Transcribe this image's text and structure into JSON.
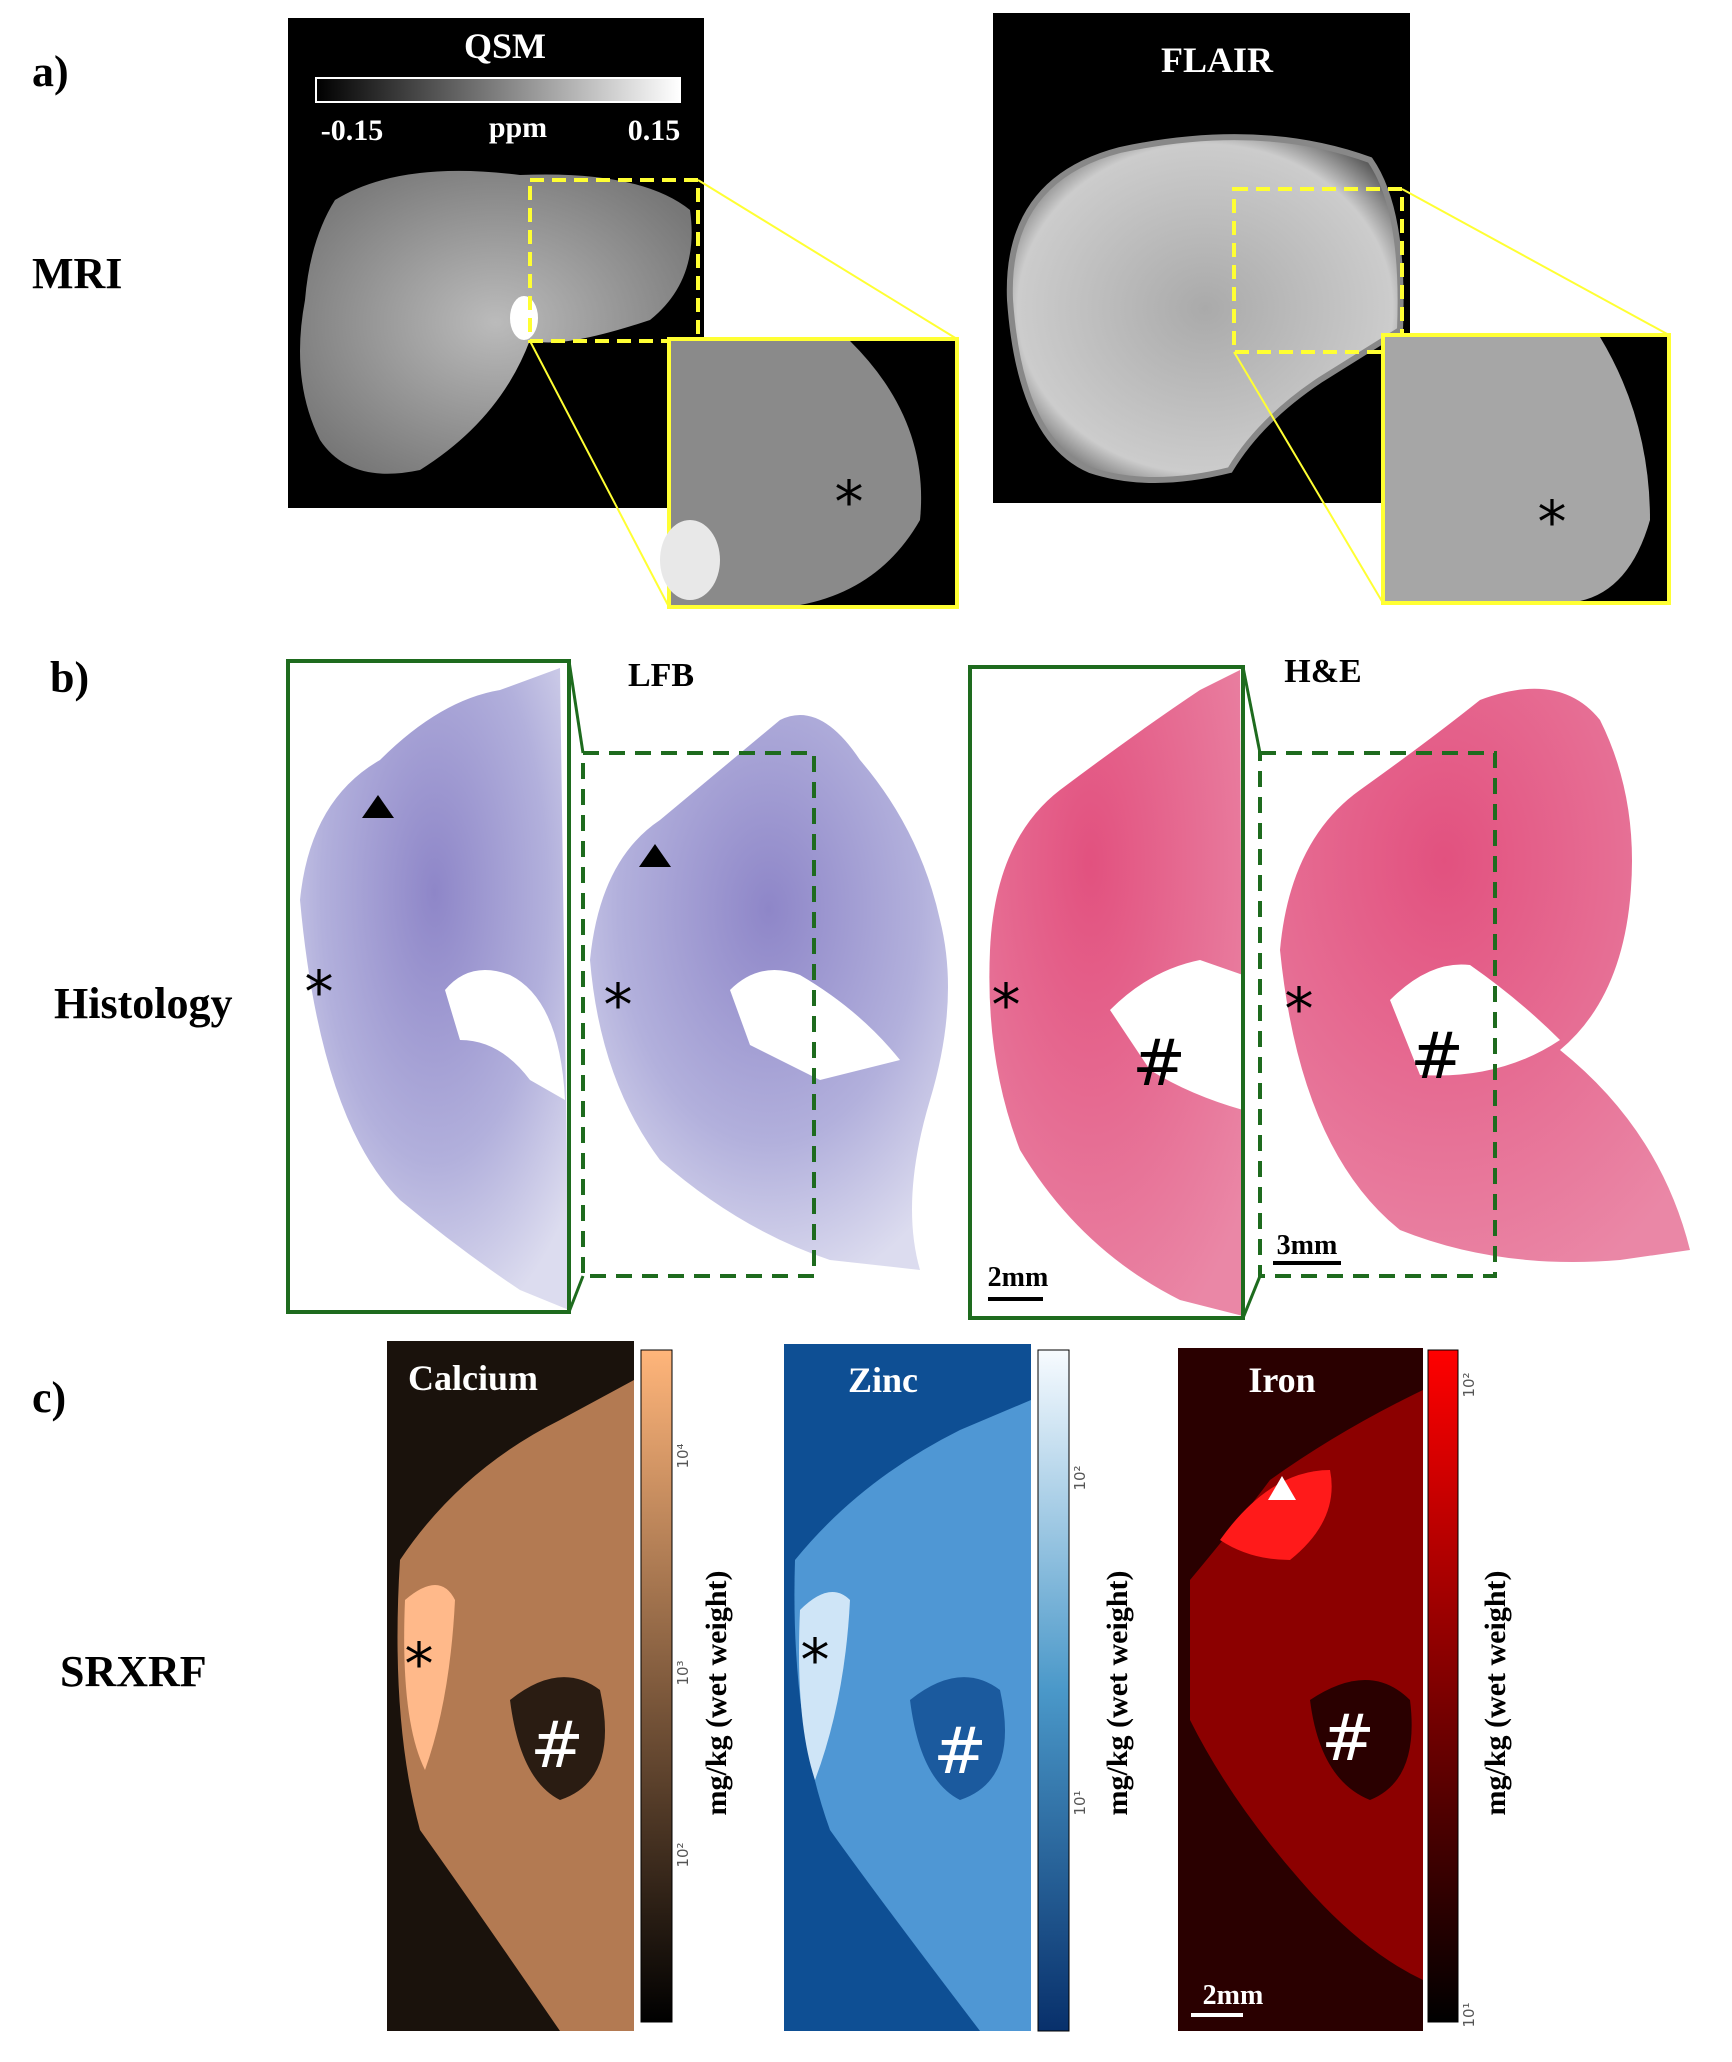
{
  "a": {
    "label": "a)",
    "row": "MRI",
    "qsm": {
      "title": "QSM",
      "cbar_min": "-0.15",
      "cbar_unit": "ppm",
      "cbar_max": "0.15",
      "marker": "*"
    },
    "flair": {
      "title": "FLAIR",
      "marker": "*"
    }
  },
  "b": {
    "label": "b)",
    "row": "Histology",
    "lfb": {
      "title": "LFB",
      "markers": [
        "*",
        "*"
      ]
    },
    "he": {
      "title": "H&E",
      "markers": [
        "*",
        "*",
        "#",
        "#"
      ],
      "scale_bars": [
        "2mm",
        "3mm"
      ]
    }
  },
  "c": {
    "label": "c)",
    "row": "SRXRF",
    "maps": [
      {
        "title": "Calcium",
        "ticks": [
          "10⁴",
          "10³",
          "10²"
        ],
        "axis_label": "mg/kg (wet weight)",
        "markers": [
          "*",
          "#"
        ]
      },
      {
        "title": "Zinc",
        "ticks": [
          "10²",
          "10¹"
        ],
        "axis_label": "mg/kg (wet weight)",
        "markers": [
          "*",
          "#"
        ]
      },
      {
        "title": "Iron",
        "ticks": [
          "10²",
          "10¹"
        ],
        "axis_label": "mg/kg (wet weight)",
        "markers": [
          "#"
        ]
      }
    ],
    "scale_bar": "2mm"
  }
}
